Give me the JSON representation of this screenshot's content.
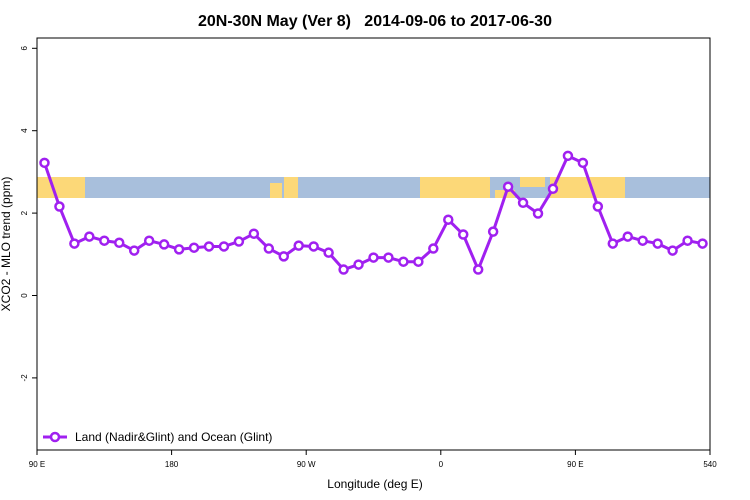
{
  "chart_data": {
    "type": "line",
    "title": "20N-30N May (Ver 8)   2014-09-06 to 2017-06-30",
    "xlabel": "Longitude (deg E)",
    "ylabel": "XCO2 - MLO trend (ppm)",
    "x": [
      95,
      105,
      115,
      125,
      135,
      145,
      155,
      165,
      175,
      185,
      195,
      205,
      215,
      225,
      235,
      245,
      255,
      265,
      275,
      285,
      295,
      305,
      315,
      325,
      335,
      345,
      355,
      365,
      375,
      385,
      395,
      405,
      415,
      425,
      435,
      445,
      455,
      465,
      475,
      485,
      495,
      505,
      515,
      525,
      535
    ],
    "series": [
      {
        "name": "Land (Nadir&Glint) and Ocean (Glint)",
        "color": "#a020f0",
        "values": [
          3.22,
          2.16,
          1.26,
          1.43,
          1.33,
          1.28,
          1.09,
          1.33,
          1.24,
          1.12,
          1.16,
          1.19,
          1.19,
          1.31,
          1.5,
          1.14,
          0.95,
          1.21,
          1.19,
          1.04,
          0.63,
          0.75,
          0.92,
          0.92,
          0.82,
          0.82,
          1.14,
          1.84,
          1.48,
          0.63,
          1.55,
          2.64,
          2.25,
          1.99,
          2.59,
          3.39,
          3.22,
          2.16,
          1.26,
          1.43,
          1.33,
          1.26,
          1.09,
          1.33,
          1.26
        ]
      }
    ],
    "xlim": [
      90,
      540
    ],
    "xticks": [
      {
        "value": 90,
        "label": "90 E"
      },
      180,
      {
        "value": 270,
        "label": "90 W"
      },
      {
        "value": 360,
        "label": "0"
      },
      {
        "value": 450,
        "label": "90 E"
      },
      540
    ],
    "ylim": [
      -3.75,
      6.25
    ],
    "yticks": [
      6,
      4,
      2,
      0,
      -2
    ],
    "legend": "bottom-left"
  }
}
